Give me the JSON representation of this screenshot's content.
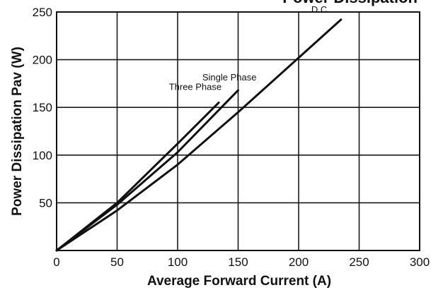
{
  "chart_data": {
    "type": "line",
    "title": "Power Dissipation",
    "xlabel": "Average Forward Current (A)",
    "ylabel": "Power Dissipation Pav (W)",
    "xlim": [
      0,
      300
    ],
    "ylim": [
      0,
      250
    ],
    "xticks": [
      "0",
      "50",
      "100",
      "150",
      "200",
      "250",
      "300"
    ],
    "yticks": [
      "50",
      "100",
      "150",
      "200",
      "250"
    ],
    "grid": true,
    "series": [
      {
        "name": "D.C.",
        "x": [
          0,
          50,
          100,
          150,
          200,
          235
        ],
        "y": [
          0,
          42,
          90,
          145,
          202,
          242
        ]
      },
      {
        "name": "Single Phase",
        "x": [
          0,
          50,
          100,
          150
        ],
        "y": [
          0,
          48,
          103,
          168
        ]
      },
      {
        "name": "Three Phase",
        "x": [
          0,
          50,
          100,
          134
        ],
        "y": [
          0,
          50,
          112,
          155
        ]
      }
    ]
  }
}
